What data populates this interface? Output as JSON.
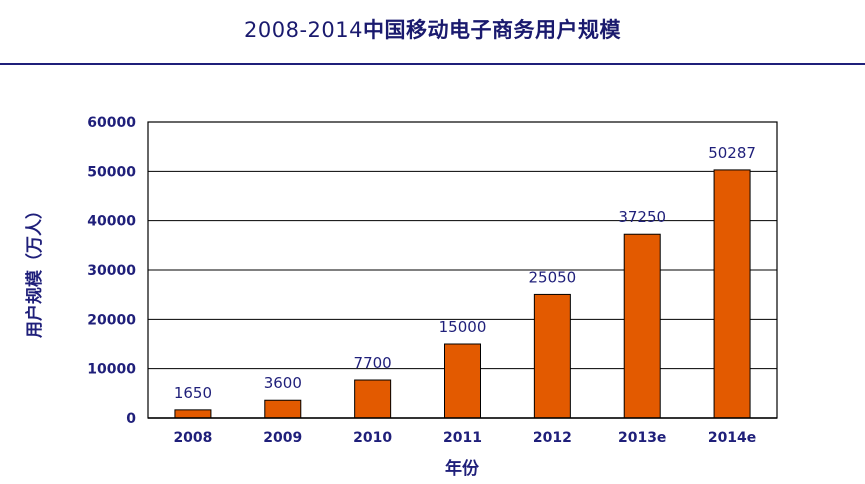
{
  "title": {
    "years": "2008-2014",
    "main": "中国移动电子商务用户规模"
  },
  "chart_data": {
    "type": "bar",
    "title": "2008-2014中国移动电子商务用户规模",
    "xlabel": "年份",
    "ylabel": "用户规模（万人）",
    "categories": [
      "2008",
      "2009",
      "2010",
      "2011",
      "2012",
      "2013e",
      "2014e"
    ],
    "values": [
      1650,
      3600,
      7700,
      15000,
      25050,
      37250,
      50287
    ],
    "data_labels": [
      "1650",
      "3600",
      "7700",
      "15000",
      "25050",
      "37250",
      "50287"
    ],
    "y_ticks": [
      "0",
      "10000",
      "20000",
      "30000",
      "40000",
      "50000",
      "60000"
    ],
    "ylim": [
      0,
      60000
    ],
    "grid": true,
    "bar_color": "#e35a00"
  }
}
